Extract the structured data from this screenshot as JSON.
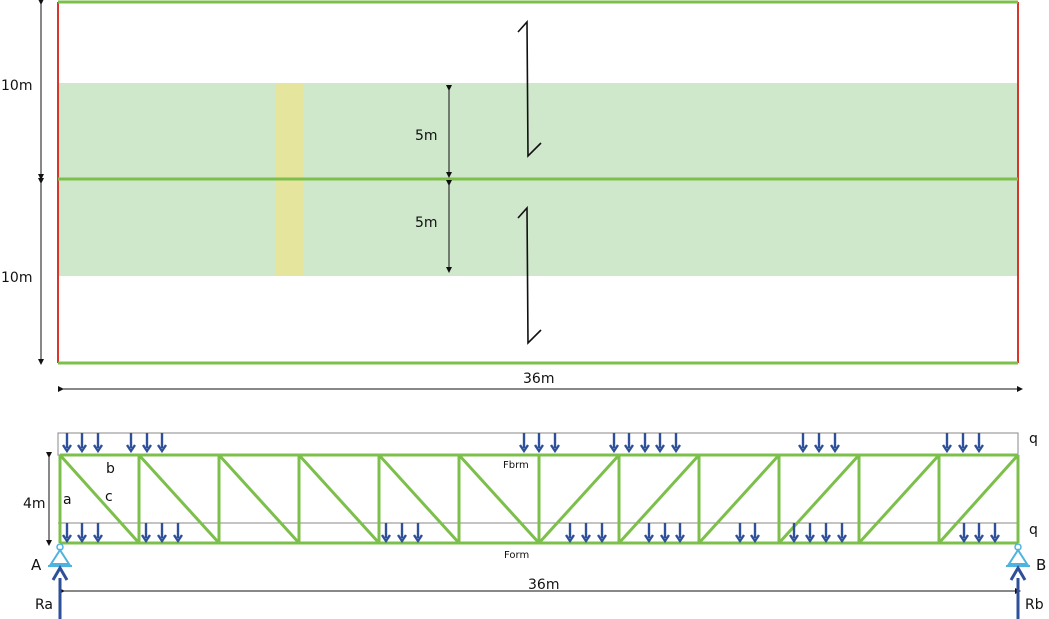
{
  "plan": {
    "dim_top": "10m",
    "dim_bottom": "10m",
    "dim_upper_inner": "5m",
    "dim_lower_inner": "5m",
    "dim_width": "36m"
  },
  "truss": {
    "height_label": "4m",
    "span_label": "36m",
    "member_a": "a",
    "member_b": "b",
    "member_c": "c",
    "force_top": "Fbrm",
    "force_bottom": "Form",
    "load_top": "q",
    "load_bottom": "q",
    "support_left": "A",
    "support_right": "B",
    "reaction_left": "Ra",
    "reaction_right": "Rb"
  },
  "colors": {
    "member": "#7cc04b",
    "edge_red": "#d9362b",
    "band": "#cfe7cb",
    "strip": "#e6e59e",
    "load_arrow": "#2e4f9a",
    "support": "#4fb3e0"
  }
}
